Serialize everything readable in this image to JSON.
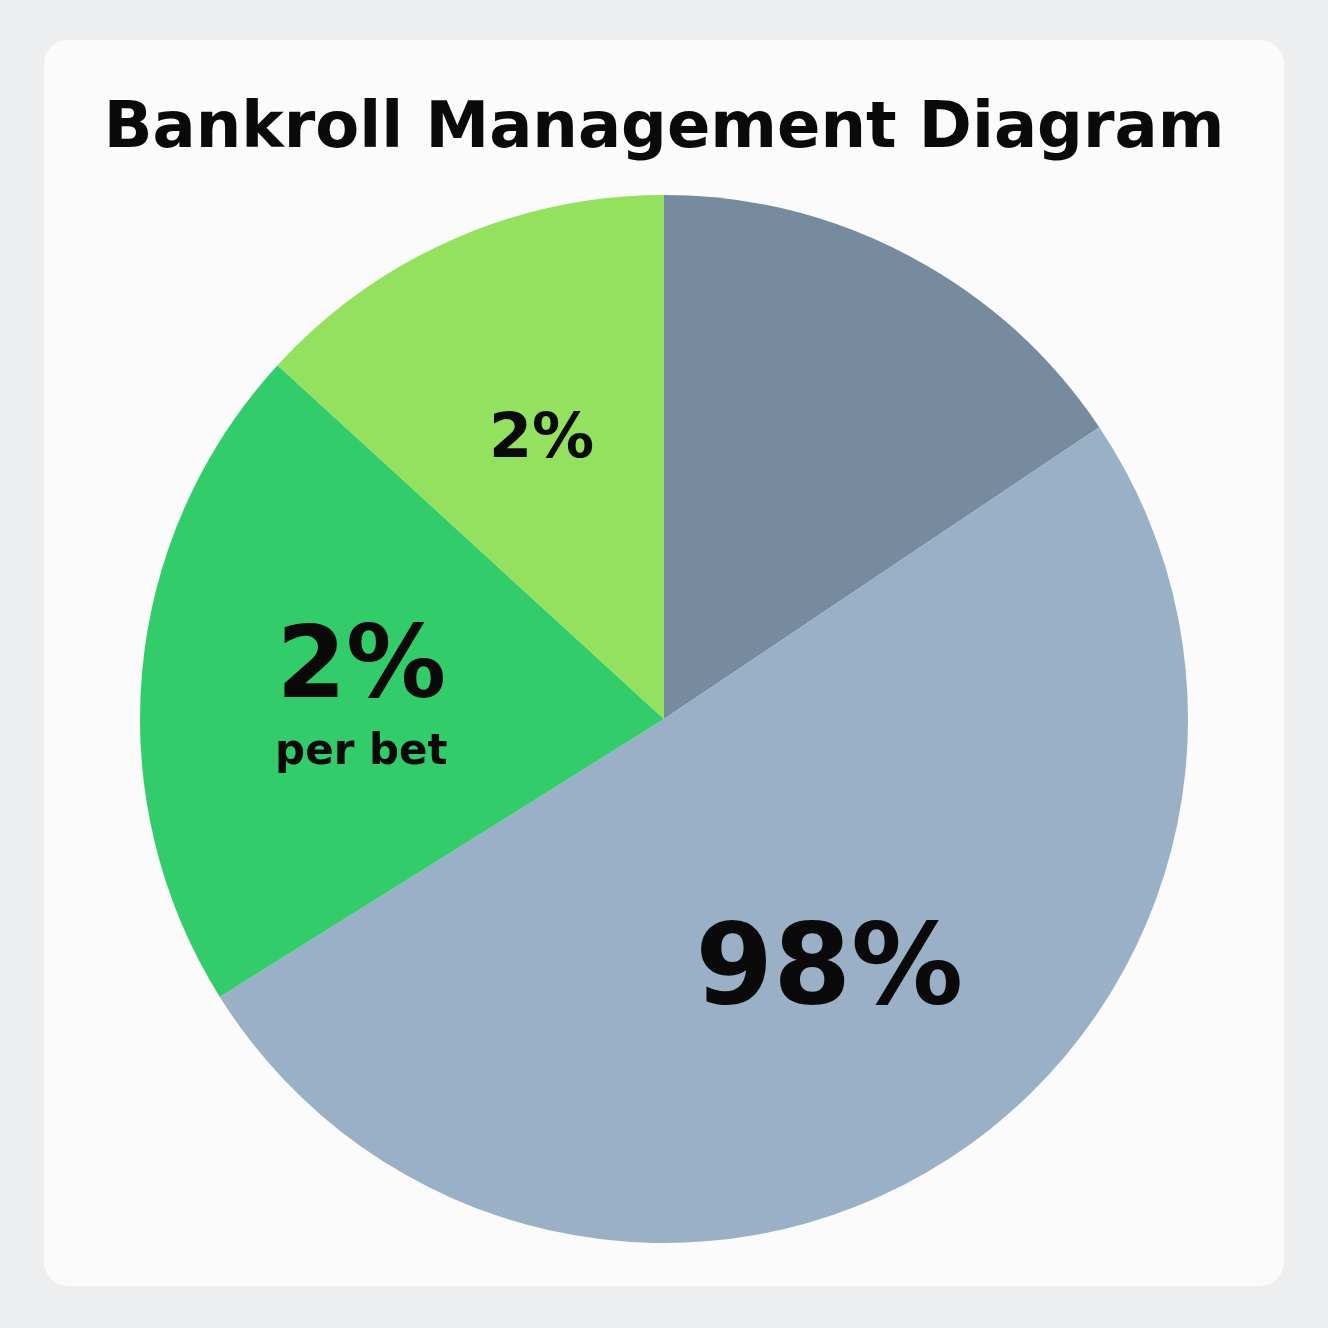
{
  "chart_data": {
    "type": "pie",
    "title": "Bankroll Management Diagram",
    "categories": [
      null,
      null,
      null,
      null
    ],
    "values": [
      15.6,
      50.5,
      20.7,
      13.2
    ],
    "colors": [
      "#778b9f",
      "#9ab0c7",
      "#33cc6a",
      "#93e15f"
    ],
    "annotations": [
      "98%",
      "2% per bet",
      "2%"
    ],
    "legend": false
  }
}
